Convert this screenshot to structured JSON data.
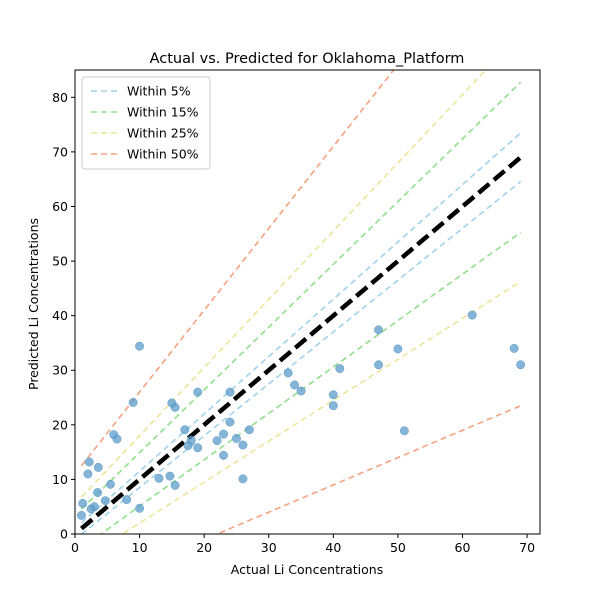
{
  "chart_data": {
    "type": "scatter",
    "title": "Actual vs. Predicted for Oklahoma_Platform",
    "xlabel": "Actual Li Concentrations",
    "ylabel": "Predicted Li Concentrations",
    "xlim": [
      0,
      72
    ],
    "ylim": [
      0,
      85
    ],
    "xticks": [
      0,
      10,
      20,
      30,
      40,
      50,
      60,
      70
    ],
    "yticks": [
      0,
      10,
      20,
      30,
      40,
      50,
      60,
      70,
      80
    ],
    "grid": false,
    "legend_position": "top-left",
    "ideal_line": {
      "x": [
        1,
        69
      ],
      "style": "dashed",
      "color": "#000000"
    },
    "bands": [
      {
        "name": "Within 5%",
        "fraction": 0.05,
        "color": "#9fd3ea"
      },
      {
        "name": "Within 15%",
        "fraction": 0.15,
        "color": "#90e08a"
      },
      {
        "name": "Within 25%",
        "fraction": 0.25,
        "color": "#eee59a"
      },
      {
        "name": "Within 50%",
        "fraction": 0.5,
        "color": "#f5a27e"
      }
    ],
    "band_offsets": {
      "0.05": 1.0,
      "0.15": 3.4,
      "0.25": 5.5,
      "0.5": 11.0
    },
    "point_color": "#5b9bc9",
    "points": [
      [
        1,
        3.4
      ],
      [
        1.2,
        5.6
      ],
      [
        2,
        11.0
      ],
      [
        2.2,
        13.2
      ],
      [
        2.5,
        4.6
      ],
      [
        3,
        5.0
      ],
      [
        3.5,
        7.6
      ],
      [
        3.6,
        12.2
      ],
      [
        4.7,
        6.1
      ],
      [
        5.5,
        9.1
      ],
      [
        6,
        18.2
      ],
      [
        6.5,
        17.4
      ],
      [
        8,
        6.3
      ],
      [
        9,
        24.1
      ],
      [
        10,
        34.4
      ],
      [
        10,
        4.7
      ],
      [
        13,
        10.2
      ],
      [
        14.7,
        10.6
      ],
      [
        15,
        24.0
      ],
      [
        15.5,
        23.2
      ],
      [
        15.5,
        8.9
      ],
      [
        17,
        19.1
      ],
      [
        17.5,
        16.2
      ],
      [
        18,
        17.2
      ],
      [
        19,
        26.0
      ],
      [
        19,
        15.8
      ],
      [
        22,
        17.1
      ],
      [
        23,
        18.3
      ],
      [
        23,
        14.4
      ],
      [
        24,
        20.5
      ],
      [
        24,
        26.0
      ],
      [
        25,
        17.5
      ],
      [
        26,
        16.3
      ],
      [
        26,
        10.1
      ],
      [
        27,
        19.1
      ],
      [
        33,
        29.5
      ],
      [
        34,
        27.3
      ],
      [
        35,
        26.2
      ],
      [
        40,
        25.5
      ],
      [
        40,
        23.5
      ],
      [
        41,
        30.3
      ],
      [
        47,
        37.4
      ],
      [
        47,
        31.0
      ],
      [
        50,
        33.9
      ],
      [
        51,
        18.9
      ],
      [
        61.5,
        40.1
      ],
      [
        68,
        34.0
      ],
      [
        69,
        31.0
      ]
    ]
  }
}
